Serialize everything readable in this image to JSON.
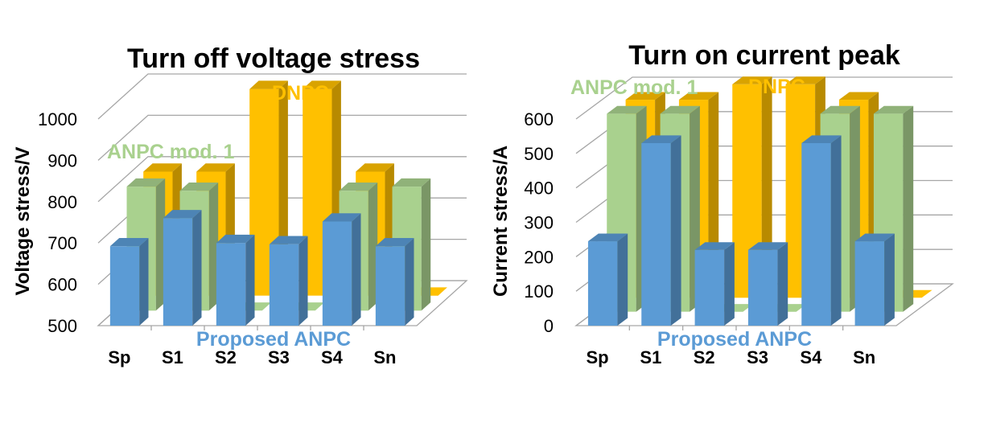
{
  "chart_data": [
    {
      "type": "bar",
      "title": "Turn off voltage stress",
      "ylabel": "Voltage stress/V",
      "xlabel": "",
      "categories": [
        "Sp",
        "S1",
        "S2",
        "S3",
        "S4",
        "Sn"
      ],
      "ylim": [
        500,
        1000
      ],
      "yticks": [
        500,
        600,
        700,
        800,
        900,
        1000
      ],
      "grid": true,
      "series": [
        {
          "name": "Proposed ANPC",
          "color": "#5b9bd5",
          "values": [
            692,
            760,
            700,
            697,
            752,
            692
          ]
        },
        {
          "name": "ANPC mod. 1",
          "color": "#a9d18e",
          "values": [
            800,
            790,
            500,
            500,
            790,
            800
          ]
        },
        {
          "name": "DNPC",
          "color": "#ffc000",
          "values": [
            800,
            800,
            1000,
            1000,
            800,
            500
          ]
        }
      ]
    },
    {
      "type": "bar",
      "title": "Turn on current peak",
      "ylabel": "Current stress/A",
      "xlabel": "",
      "categories": [
        "Sp",
        "S1",
        "S2",
        "S3",
        "S4",
        "Sn"
      ],
      "ylim": [
        0,
        600
      ],
      "yticks": [
        0,
        100,
        200,
        300,
        400,
        500,
        600
      ],
      "grid": true,
      "series": [
        {
          "name": "Proposed ANPC",
          "color": "#5b9bd5",
          "values": [
            245,
            530,
            220,
            220,
            530,
            245
          ]
        },
        {
          "name": "ANPC mod. 1",
          "color": "#a9d18e",
          "values": [
            575,
            575,
            0,
            0,
            575,
            575
          ]
        },
        {
          "name": "DNPC",
          "color": "#ffc000",
          "values": [
            575,
            575,
            620,
            620,
            575,
            0
          ]
        }
      ]
    }
  ]
}
